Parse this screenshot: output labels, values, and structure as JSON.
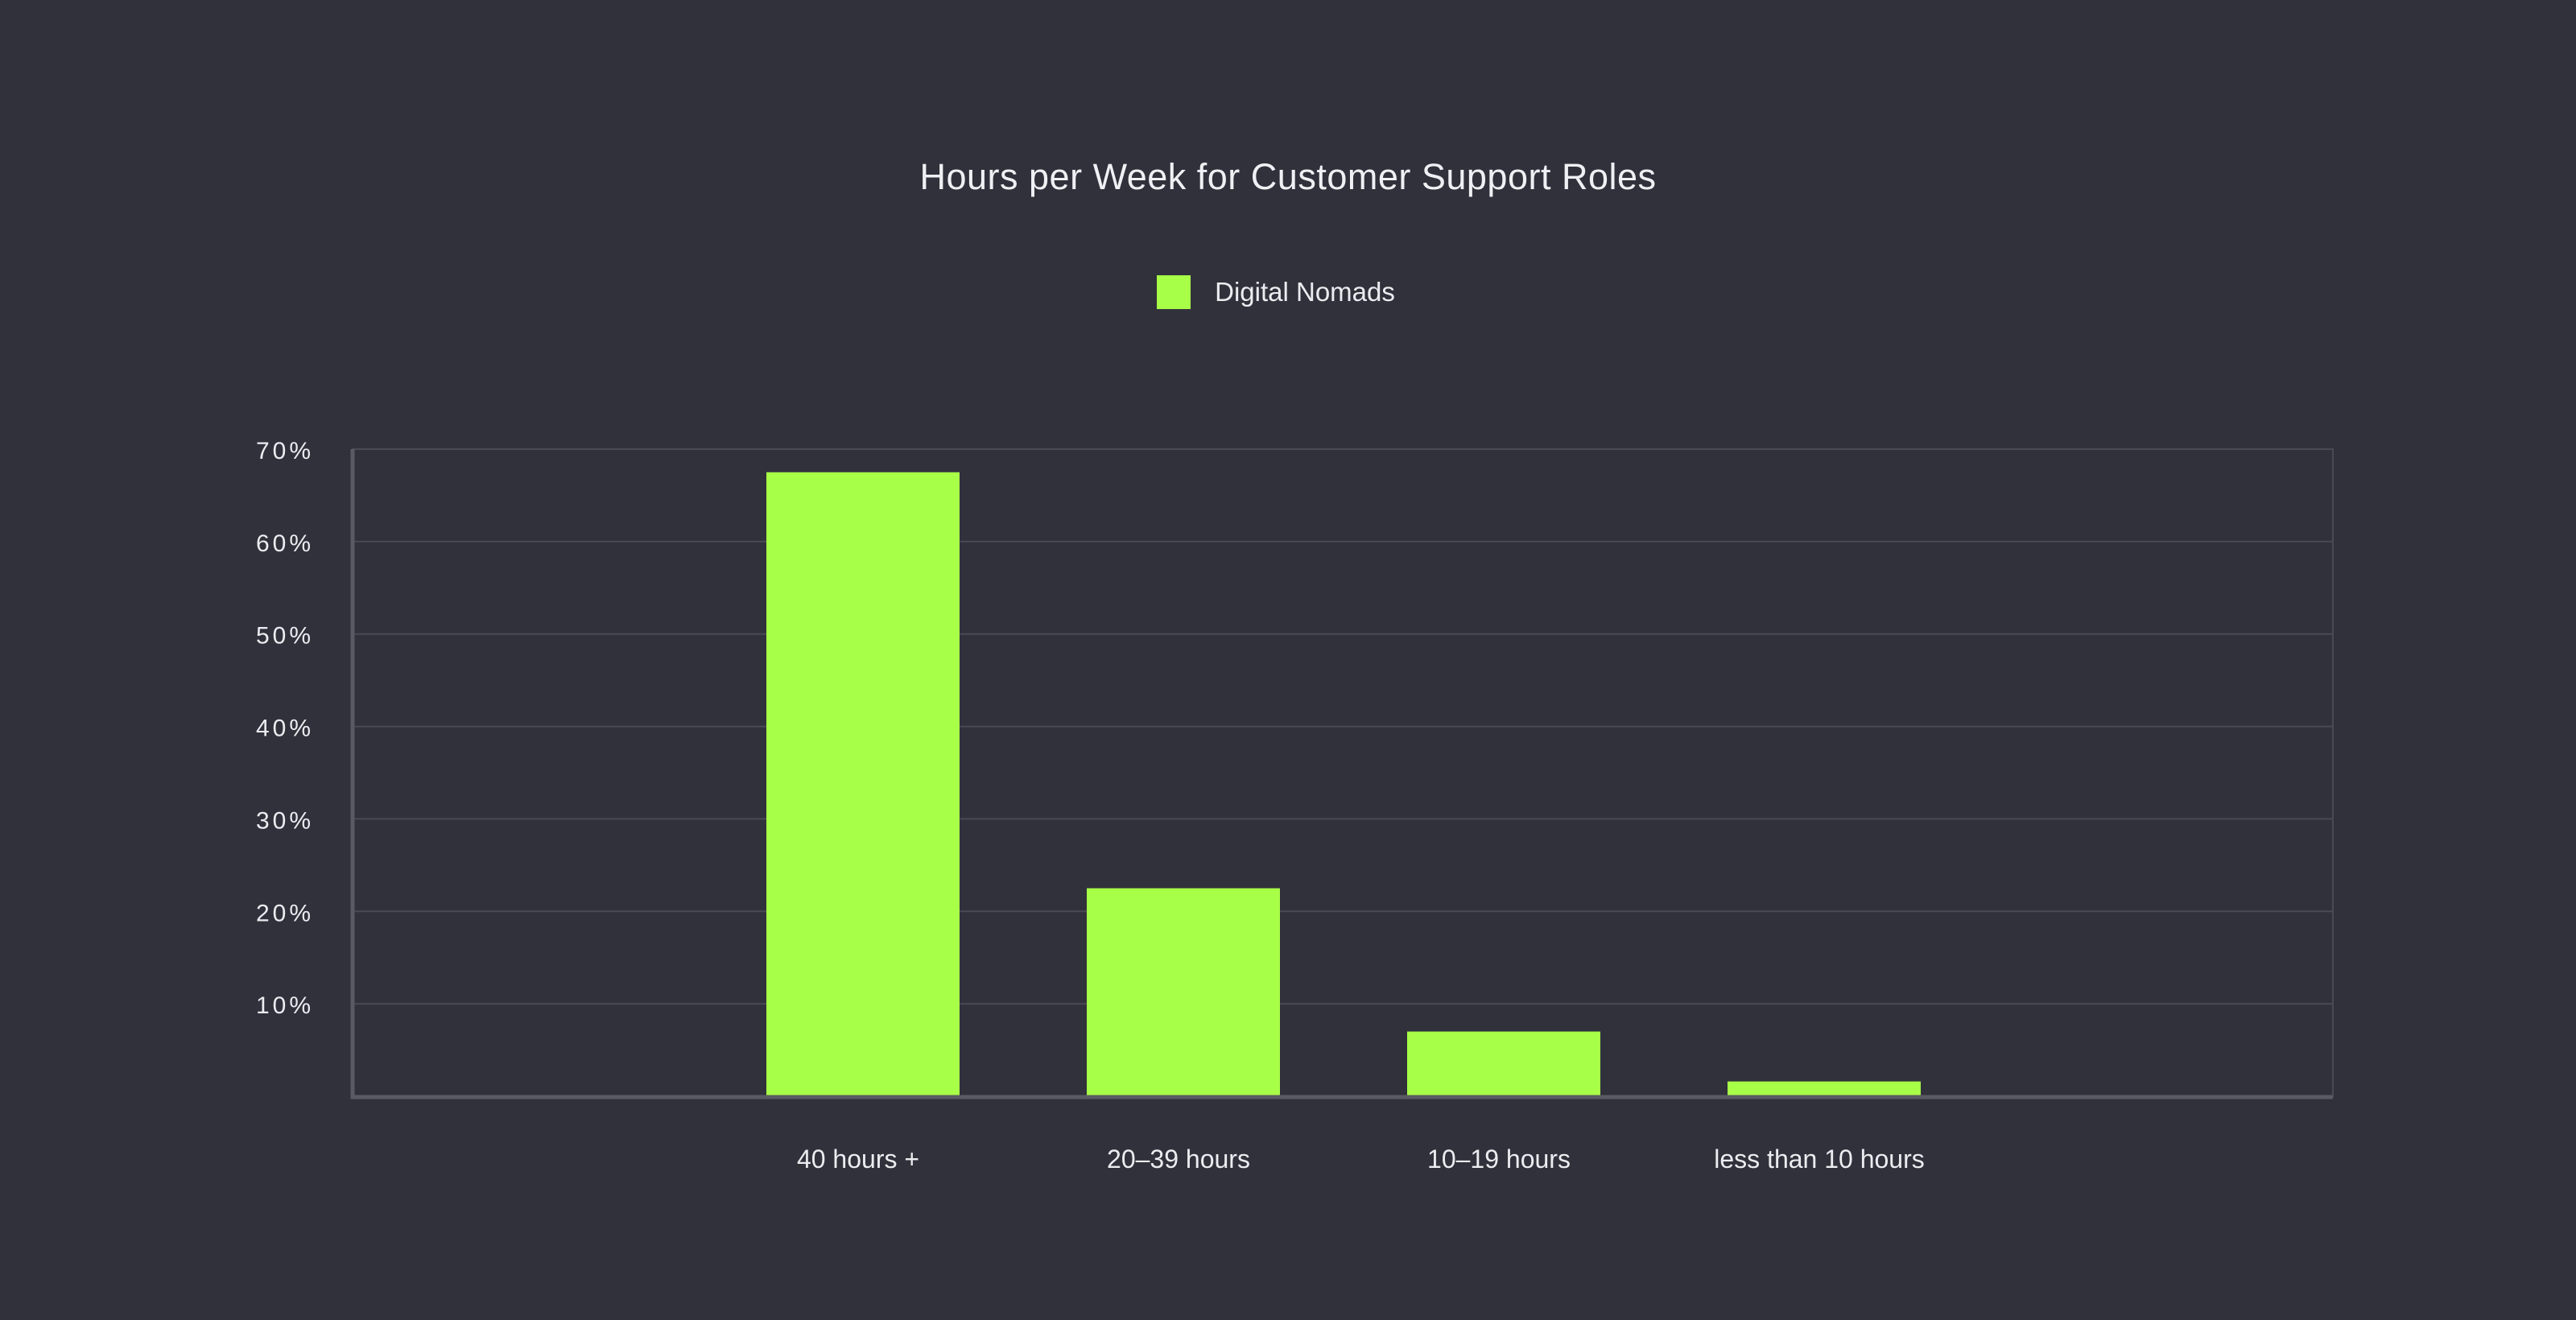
{
  "chart_data": {
    "type": "bar",
    "title": "Hours per Week for Customer Support Roles",
    "categories": [
      "40 hours +",
      "20–39 hours",
      "10–19 hours",
      "less than 10 hours"
    ],
    "series": [
      {
        "name": "Digital Nomads",
        "values": [
          67.5,
          22.5,
          7,
          1.6
        ],
        "color": "#a8ff47"
      }
    ],
    "ylim": [
      0,
      70
    ],
    "yticks": [
      {
        "value": 10,
        "label": "10%"
      },
      {
        "value": 20,
        "label": "20%"
      },
      {
        "value": 30,
        "label": "30%"
      },
      {
        "value": 40,
        "label": "40%"
      },
      {
        "value": 50,
        "label": "50%"
      },
      {
        "value": 60,
        "label": "60%"
      },
      {
        "value": 70,
        "label": "70%"
      }
    ],
    "xlabel": "",
    "ylabel": "",
    "grid": true,
    "legend_position": "top-center"
  },
  "colors": {
    "background": "#31313c",
    "grid": "#4a4a55",
    "axis": "#5a5a63",
    "text": "#ececf0"
  }
}
